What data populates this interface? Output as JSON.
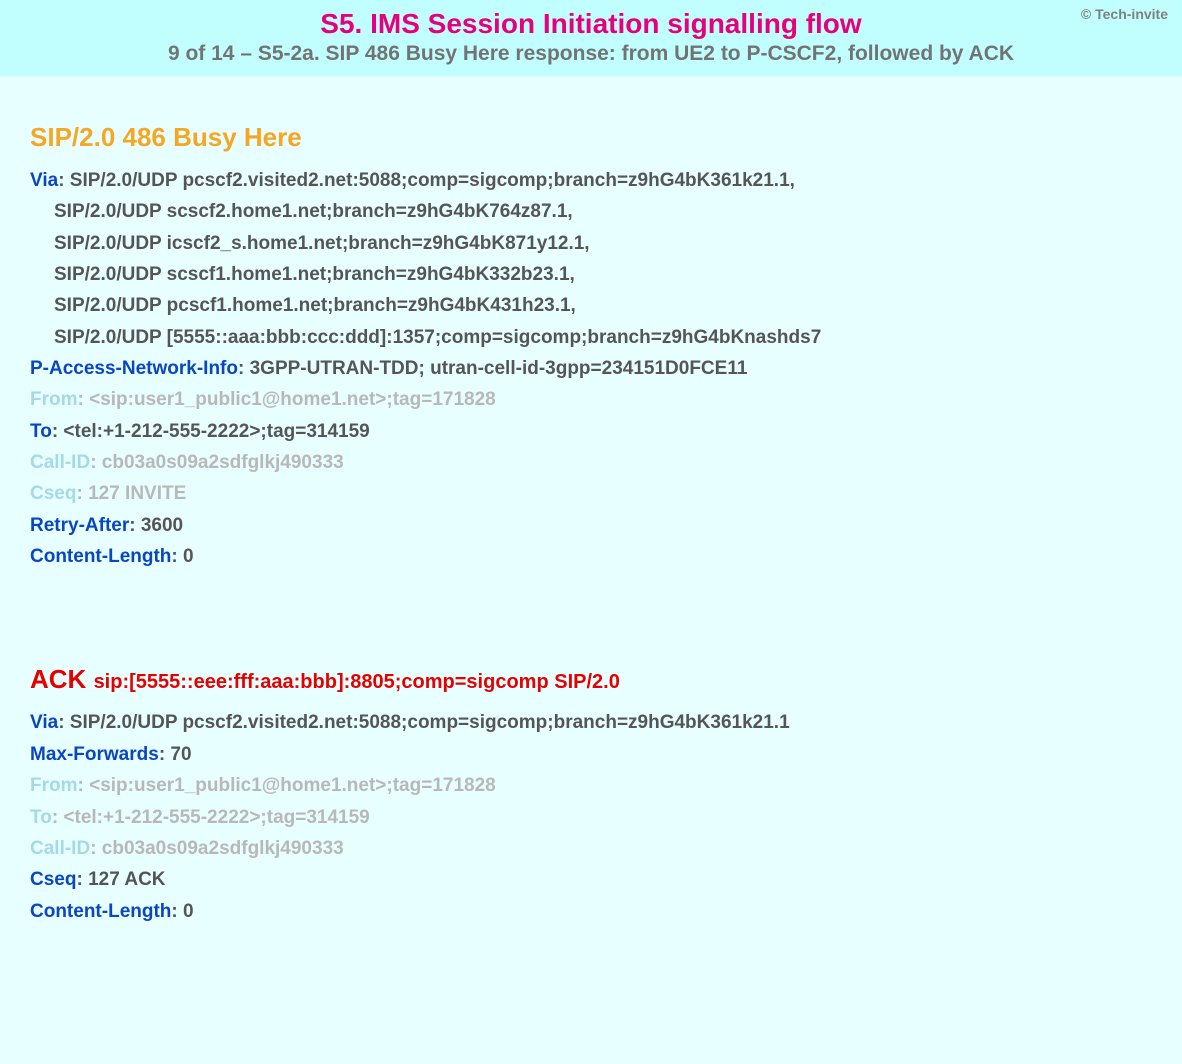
{
  "colors": {
    "page_bg": "#e7ffff",
    "header_bg": "#c1ffff",
    "title": "#e6007e",
    "subtitle": "#737373",
    "copyright": "#808080",
    "msg_orange": "#f5a623",
    "msg_red": "#e60000",
    "key_strong": "#0a45c2",
    "key_faded": "#a6d9e6",
    "val_strong": "#555555",
    "val_faded": "#b8b8b8"
  },
  "typography": {
    "title_fontsize": 28,
    "subtitle_fontsize": 21,
    "msg_title_fontsize": 26,
    "body_fontsize": 19,
    "copyright_fontsize": 14
  },
  "header": {
    "copyright": "© Tech-invite",
    "title": "S5. IMS Session Initiation signalling flow",
    "subtitle": "9 of 14 – S5-2a. SIP 486 Busy Here response: from UE2 to P-CSCF2, followed by ACK"
  },
  "msg1": {
    "title": "SIP/2.0 486 Busy Here",
    "via_key": "Via",
    "via_first": ": SIP/2.0/UDP pcscf2.visited2.net:5088;comp=sigcomp;branch=z9hG4bK361k21.1,",
    "via_2": "SIP/2.0/UDP scscf2.home1.net;branch=z9hG4bK764z87.1,",
    "via_3": "SIP/2.0/UDP icscf2_s.home1.net;branch=z9hG4bK871y12.1,",
    "via_4": "SIP/2.0/UDP scscf1.home1.net;branch=z9hG4bK332b23.1,",
    "via_5": "SIP/2.0/UDP pcscf1.home1.net;branch=z9hG4bK431h23.1,",
    "via_6": "SIP/2.0/UDP [5555::aaa:bbb:ccc:ddd]:1357;comp=sigcomp;branch=z9hG4bKnashds7",
    "pani_key": "P-Access-Network-Info",
    "pani_val": ": 3GPP-UTRAN-TDD; utran-cell-id-3gpp=234151D0FCE11",
    "from_key": "From",
    "from_val": ": <sip:user1_public1@home1.net>;tag=171828",
    "to_key": "To",
    "to_val": ": <tel:+1-212-555-2222>;tag=314159",
    "callid_key": "Call-ID",
    "callid_val": ": cb03a0s09a2sdfglkj490333",
    "cseq_key": "Cseq",
    "cseq_val": ": 127 INVITE",
    "retry_key": "Retry-After",
    "retry_val": ": 3600",
    "clen_key": "Content-Length",
    "clen_val": ": 0"
  },
  "msg2": {
    "title": "ACK ",
    "title_sub": "sip:[5555::eee:fff:aaa:bbb]:8805;comp=sigcomp SIP/2.0",
    "via_key": "Via",
    "via_val": ": SIP/2.0/UDP pcscf2.visited2.net:5088;comp=sigcomp;branch=z9hG4bK361k21.1",
    "maxf_key": "Max-Forwards",
    "maxf_val": ": 70",
    "from_key": "From",
    "from_val": ": <sip:user1_public1@home1.net>;tag=171828",
    "to_key": "To",
    "to_val": ": <tel:+1-212-555-2222>;tag=314159",
    "callid_key": "Call-ID",
    "callid_val": ": cb03a0s09a2sdfglkj490333",
    "cseq_key": "Cseq",
    "cseq_val": ": 127 ACK",
    "clen_key": "Content-Length",
    "clen_val": ": 0"
  }
}
